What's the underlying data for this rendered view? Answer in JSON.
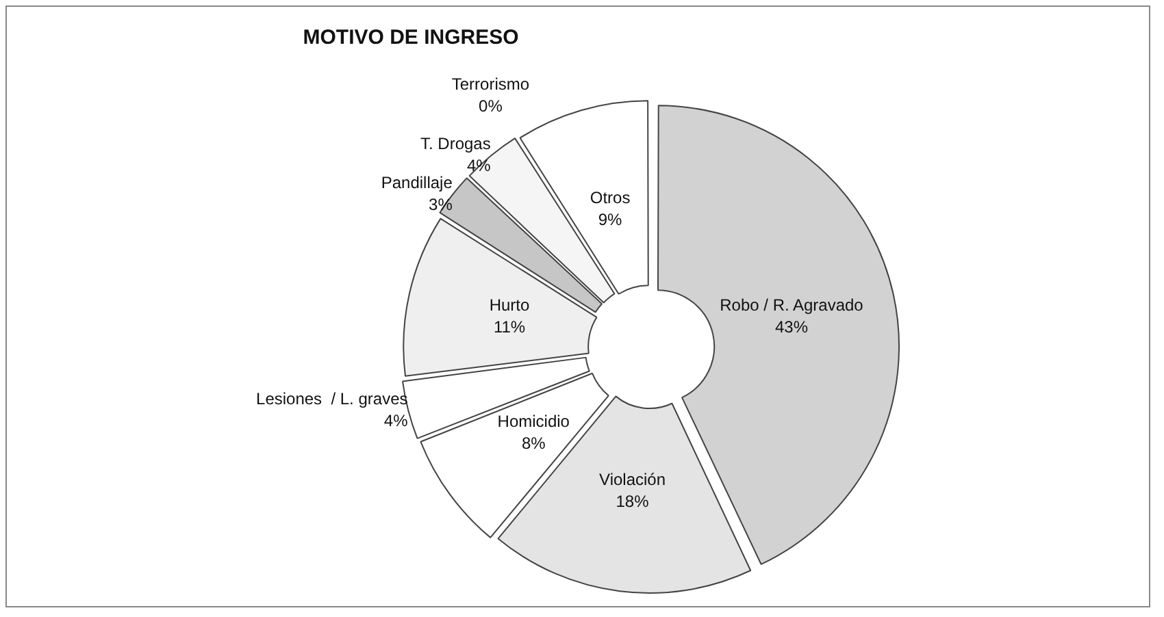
{
  "chart_data": {
    "type": "donut",
    "title": "MOTIVO DE INGRESO",
    "categories": [
      "Robo / R. Agravado",
      "Violación",
      "Homicidio",
      "Lesiones  / L. graves",
      "Hurto",
      "Pandillaje",
      "T. Drogas",
      "Terrorismo",
      "Otros"
    ],
    "values": [
      43,
      18,
      8,
      4,
      11,
      3,
      4,
      0,
      9
    ],
    "value_labels": [
      "43%",
      "18%",
      "8%",
      "4%",
      "11%",
      "3%",
      "4%",
      "0%",
      "9%"
    ],
    "colors": [
      "#d2d2d2",
      "#e4e4e4",
      "#ffffff",
      "#ffffff",
      "#efefef",
      "#c6c6c6",
      "#f5f5f5",
      "#ffffff",
      "#ffffff"
    ],
    "legend": false
  }
}
